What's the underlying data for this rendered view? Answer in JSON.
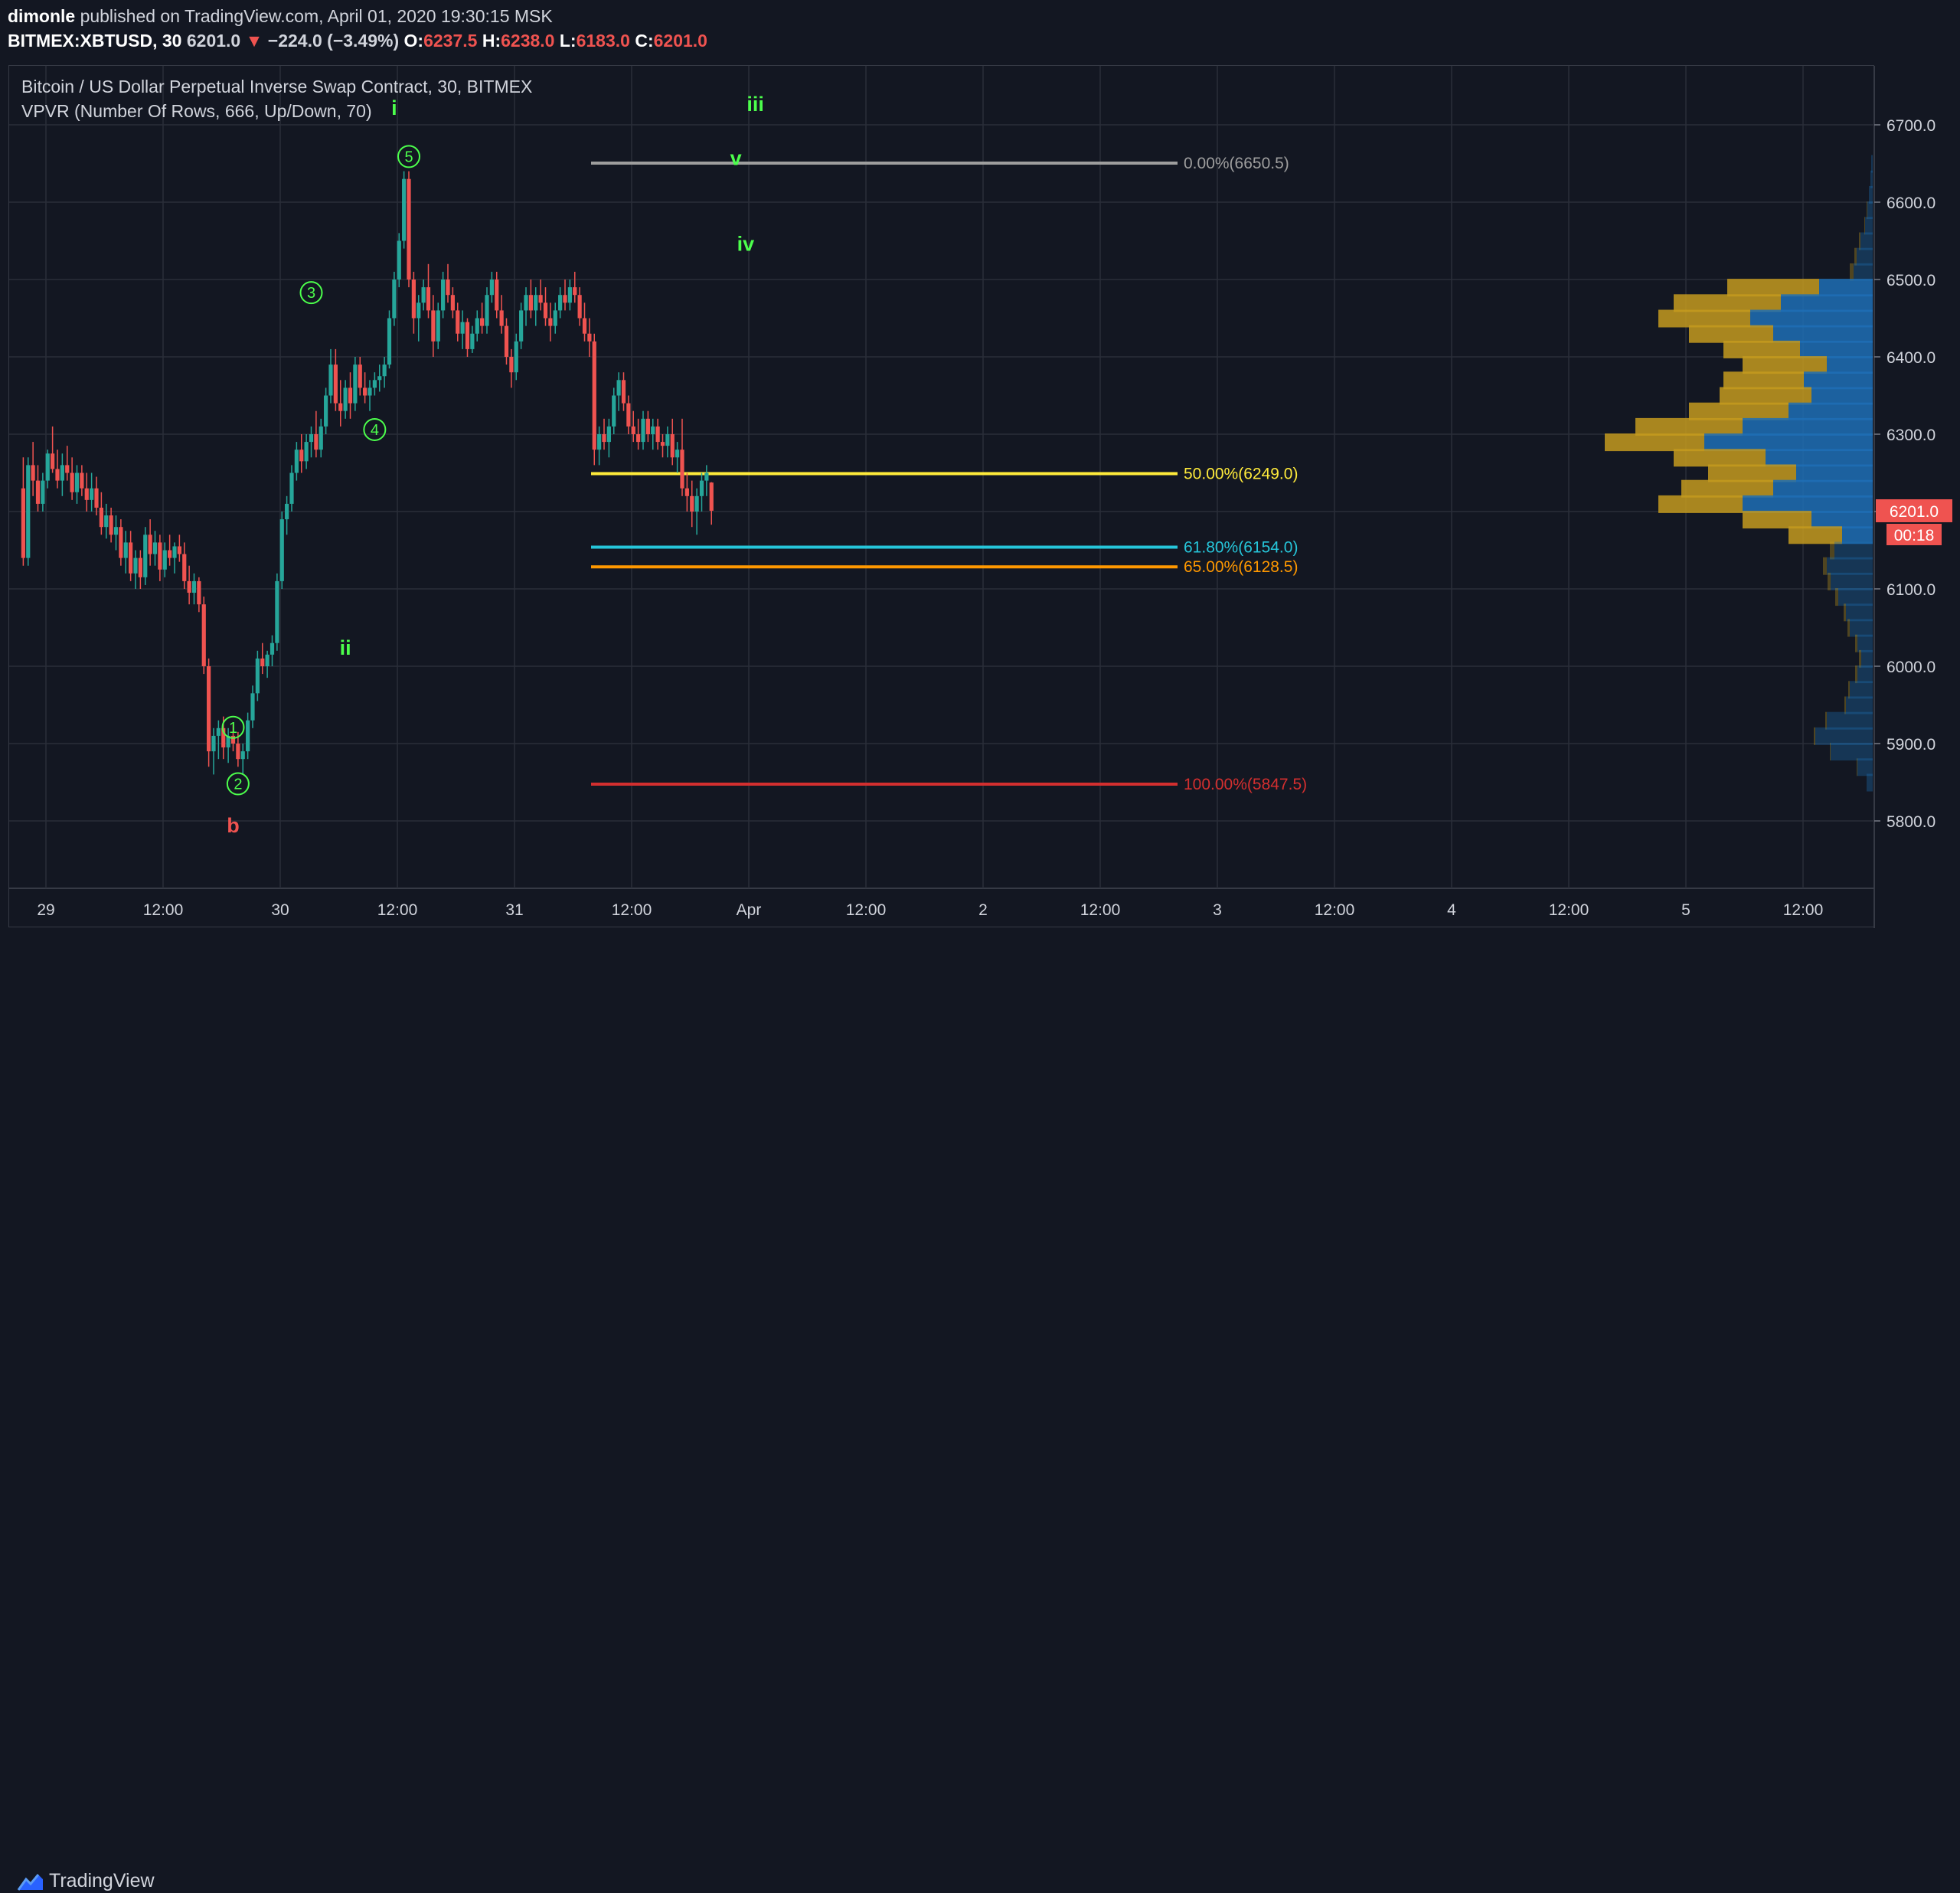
{
  "header": {
    "publisher": "dimonle",
    "published_text": "published on TradingView.com, April 01, 2020 19:30:15 MSK",
    "symbol": "BITMEX:XBTUSD, 30",
    "last": "6201.0",
    "arrow": "▼",
    "change": "−224.0 (−3.49%)",
    "o_label": "O:",
    "o_value": "6237.5",
    "h_label": "H:",
    "h_value": "6238.0",
    "l_label": "L:",
    "l_value": "6183.0",
    "c_label": "C:",
    "c_value": "6201.0"
  },
  "legend": {
    "line1": "Bitcoin / US Dollar Perpetual Inverse Swap Contract, 30, BITMEX",
    "line2": "VPVR (Number Of Rows, 666, Up/Down, 70)"
  },
  "footer": {
    "logo_text": "TradingView"
  },
  "colors": {
    "background": "#131722",
    "grid": "#2a2e39",
    "up": "#26a69a",
    "down": "#ef5350",
    "text": "#d1d4dc",
    "wave_green": "#4cff4c",
    "vp_up": "#1e6fb5",
    "vp_down": "#c49a1e"
  },
  "chart_data": {
    "type": "candlestick",
    "title": "Bitcoin / US Dollar Perpetual Inverse Swap Contract, 30, BITMEX",
    "ylim": [
      5740,
      6760
    ],
    "y_ticks": [
      "6700.0",
      "6600.0",
      "6500.0",
      "6400.0",
      "6300.0",
      "6200.0",
      "6100.0",
      "6000.0",
      "5900.0",
      "5800.0"
    ],
    "x_ticks": [
      "29",
      "12:00",
      "30",
      "12:00",
      "31",
      "12:00",
      "Apr",
      "12:00",
      "2",
      "12:00",
      "3",
      "12:00",
      "4",
      "12:00",
      "5",
      "12:00"
    ],
    "grid": true,
    "price_label": "6201.0",
    "countdown_label": "00:18",
    "candles": [
      [
        6230,
        6270,
        6130,
        6140
      ],
      [
        6140,
        6270,
        6130,
        6260
      ],
      [
        6260,
        6290,
        6220,
        6240
      ],
      [
        6240,
        6260,
        6200,
        6210
      ],
      [
        6210,
        6250,
        6200,
        6240
      ],
      [
        6240,
        6280,
        6230,
        6275
      ],
      [
        6275,
        6310,
        6250,
        6255
      ],
      [
        6255,
        6280,
        6230,
        6240
      ],
      [
        6240,
        6275,
        6220,
        6260
      ],
      [
        6260,
        6285,
        6240,
        6250
      ],
      [
        6250,
        6270,
        6215,
        6225
      ],
      [
        6225,
        6260,
        6210,
        6250
      ],
      [
        6250,
        6260,
        6220,
        6230
      ],
      [
        6230,
        6250,
        6200,
        6215
      ],
      [
        6215,
        6250,
        6200,
        6230
      ],
      [
        6230,
        6245,
        6195,
        6205
      ],
      [
        6205,
        6225,
        6170,
        6180
      ],
      [
        6180,
        6210,
        6165,
        6195
      ],
      [
        6195,
        6205,
        6160,
        6170
      ],
      [
        6170,
        6195,
        6150,
        6180
      ],
      [
        6180,
        6190,
        6130,
        6140
      ],
      [
        6140,
        6175,
        6120,
        6160
      ],
      [
        6160,
        6175,
        6110,
        6120
      ],
      [
        6120,
        6150,
        6100,
        6140
      ],
      [
        6140,
        6150,
        6100,
        6115
      ],
      [
        6115,
        6180,
        6105,
        6170
      ],
      [
        6170,
        6190,
        6130,
        6145
      ],
      [
        6145,
        6175,
        6130,
        6160
      ],
      [
        6160,
        6170,
        6110,
        6125
      ],
      [
        6125,
        6160,
        6115,
        6150
      ],
      [
        6150,
        6170,
        6130,
        6140
      ],
      [
        6140,
        6160,
        6120,
        6155
      ],
      [
        6155,
        6170,
        6135,
        6145
      ],
      [
        6145,
        6160,
        6100,
        6110
      ],
      [
        6110,
        6130,
        6080,
        6095
      ],
      [
        6095,
        6120,
        6080,
        6110
      ],
      [
        6110,
        6115,
        6070,
        6080
      ],
      [
        6080,
        6090,
        5990,
        6000
      ],
      [
        6000,
        6010,
        5870,
        5890
      ],
      [
        5890,
        5920,
        5860,
        5910
      ],
      [
        5910,
        5930,
        5880,
        5920
      ],
      [
        5920,
        5935,
        5880,
        5895
      ],
      [
        5895,
        5920,
        5875,
        5910
      ],
      [
        5910,
        5925,
        5890,
        5900
      ],
      [
        5900,
        5915,
        5870,
        5880
      ],
      [
        5880,
        5900,
        5860,
        5890
      ],
      [
        5890,
        5940,
        5880,
        5930
      ],
      [
        5930,
        5975,
        5920,
        5965
      ],
      [
        5965,
        6020,
        5955,
        6010
      ],
      [
        6010,
        6030,
        5990,
        6000
      ],
      [
        6000,
        6020,
        5985,
        6015
      ],
      [
        6015,
        6040,
        6000,
        6030
      ],
      [
        6030,
        6120,
        6020,
        6110
      ],
      [
        6110,
        6200,
        6100,
        6190
      ],
      [
        6190,
        6220,
        6170,
        6210
      ],
      [
        6210,
        6260,
        6200,
        6250
      ],
      [
        6250,
        6290,
        6240,
        6280
      ],
      [
        6280,
        6300,
        6250,
        6265
      ],
      [
        6265,
        6300,
        6255,
        6290
      ],
      [
        6290,
        6310,
        6270,
        6300
      ],
      [
        6300,
        6330,
        6270,
        6280
      ],
      [
        6280,
        6320,
        6270,
        6310
      ],
      [
        6310,
        6360,
        6300,
        6350
      ],
      [
        6350,
        6410,
        6340,
        6390
      ],
      [
        6390,
        6410,
        6330,
        6340
      ],
      [
        6340,
        6370,
        6310,
        6330
      ],
      [
        6330,
        6370,
        6320,
        6360
      ],
      [
        6360,
        6380,
        6320,
        6340
      ],
      [
        6340,
        6400,
        6330,
        6390
      ],
      [
        6390,
        6400,
        6350,
        6360
      ],
      [
        6360,
        6380,
        6340,
        6350
      ],
      [
        6350,
        6370,
        6330,
        6360
      ],
      [
        6360,
        6380,
        6350,
        6370
      ],
      [
        6370,
        6390,
        6355,
        6375
      ],
      [
        6375,
        6400,
        6360,
        6390
      ],
      [
        6390,
        6460,
        6385,
        6450
      ],
      [
        6450,
        6510,
        6440,
        6500
      ],
      [
        6500,
        6560,
        6490,
        6550
      ],
      [
        6550,
        6640,
        6540,
        6630
      ],
      [
        6630,
        6640,
        6490,
        6500
      ],
      [
        6500,
        6510,
        6430,
        6450
      ],
      [
        6450,
        6480,
        6420,
        6470
      ],
      [
        6470,
        6500,
        6460,
        6490
      ],
      [
        6490,
        6520,
        6450,
        6460
      ],
      [
        6460,
        6480,
        6400,
        6420
      ],
      [
        6420,
        6470,
        6410,
        6460
      ],
      [
        6460,
        6510,
        6450,
        6500
      ],
      [
        6500,
        6520,
        6470,
        6480
      ],
      [
        6480,
        6490,
        6450,
        6460
      ],
      [
        6460,
        6470,
        6420,
        6430
      ],
      [
        6430,
        6460,
        6410,
        6445
      ],
      [
        6445,
        6450,
        6400,
        6410
      ],
      [
        6410,
        6440,
        6405,
        6430
      ],
      [
        6430,
        6460,
        6420,
        6450
      ],
      [
        6450,
        6470,
        6430,
        6440
      ],
      [
        6440,
        6490,
        6430,
        6480
      ],
      [
        6480,
        6510,
        6470,
        6500
      ],
      [
        6500,
        6510,
        6450,
        6460
      ],
      [
        6460,
        6480,
        6430,
        6440
      ],
      [
        6440,
        6450,
        6390,
        6400
      ],
      [
        6400,
        6410,
        6360,
        6380
      ],
      [
        6380,
        6430,
        6370,
        6420
      ],
      [
        6420,
        6470,
        6410,
        6460
      ],
      [
        6460,
        6490,
        6440,
        6480
      ],
      [
        6480,
        6500,
        6450,
        6460
      ],
      [
        6460,
        6490,
        6440,
        6480
      ],
      [
        6480,
        6500,
        6460,
        6470
      ],
      [
        6470,
        6490,
        6440,
        6450
      ],
      [
        6450,
        6470,
        6420,
        6440
      ],
      [
        6440,
        6470,
        6430,
        6460
      ],
      [
        6460,
        6490,
        6450,
        6480
      ],
      [
        6480,
        6500,
        6460,
        6470
      ],
      [
        6470,
        6500,
        6460,
        6490
      ],
      [
        6490,
        6510,
        6470,
        6480
      ],
      [
        6480,
        6490,
        6440,
        6450
      ],
      [
        6450,
        6470,
        6420,
        6430
      ],
      [
        6430,
        6450,
        6400,
        6420
      ],
      [
        6420,
        6430,
        6260,
        6280
      ],
      [
        6280,
        6310,
        6260,
        6300
      ],
      [
        6300,
        6320,
        6280,
        6290
      ],
      [
        6290,
        6320,
        6270,
        6310
      ],
      [
        6310,
        6360,
        6300,
        6350
      ],
      [
        6350,
        6380,
        6330,
        6370
      ],
      [
        6370,
        6380,
        6330,
        6340
      ],
      [
        6340,
        6350,
        6300,
        6310
      ],
      [
        6310,
        6330,
        6290,
        6300
      ],
      [
        6300,
        6320,
        6280,
        6290
      ],
      [
        6290,
        6330,
        6280,
        6320
      ],
      [
        6320,
        6330,
        6290,
        6300
      ],
      [
        6300,
        6320,
        6280,
        6310
      ],
      [
        6310,
        6320,
        6280,
        6290
      ],
      [
        6290,
        6300,
        6270,
        6285
      ],
      [
        6285,
        6310,
        6270,
        6300
      ],
      [
        6300,
        6320,
        6260,
        6270
      ],
      [
        6270,
        6290,
        6250,
        6280
      ],
      [
        6280,
        6320,
        6220,
        6230
      ],
      [
        6230,
        6250,
        6200,
        6220
      ],
      [
        6220,
        6240,
        6180,
        6200
      ],
      [
        6200,
        6230,
        6170,
        6220
      ],
      [
        6220,
        6250,
        6200,
        6240
      ],
      [
        6240,
        6260,
        6220,
        6250
      ],
      [
        6237.5,
        6238,
        6183,
        6201
      ]
    ],
    "x_start": 1,
    "fib_levels": [
      {
        "label": "0.00%(6650.5)",
        "price": 6650.5,
        "color": "#9e9e9e"
      },
      {
        "label": "50.00%(6249.0)",
        "price": 6249.0,
        "color": "#ffeb3b"
      },
      {
        "label": "61.80%(6154.0)",
        "price": 6154.0,
        "color": "#26c6da"
      },
      {
        "label": "65.00%(6128.5)",
        "price": 6128.5,
        "color": "#ff9800"
      },
      {
        "label": "100.00%(5847.5)",
        "price": 5847.5,
        "color": "#d32f2f"
      }
    ],
    "wave_circles": [
      {
        "label": "1",
        "bar": 44,
        "price": 5921
      },
      {
        "label": "2",
        "bar": 45,
        "price": 5848
      },
      {
        "label": "3",
        "bar": 60,
        "price": 6483
      },
      {
        "label": "4",
        "bar": 73,
        "price": 6306
      },
      {
        "label": "5",
        "bar": 80,
        "price": 6659
      }
    ],
    "wave_labels": [
      {
        "label": "b",
        "bar": 44,
        "price": 5785,
        "color": "#ef5350"
      },
      {
        "label": "ii",
        "bar": 67,
        "price": 6015,
        "color": "#4cff4c"
      },
      {
        "label": "iii",
        "bar": 151,
        "price": 6718,
        "color": "#4cff4c"
      },
      {
        "label": "iv",
        "bar": 149,
        "price": 6537,
        "color": "#4cff4c"
      },
      {
        "label": "v",
        "bar": 147,
        "price": 6648,
        "color": "#4cff4c"
      },
      {
        "label": "i",
        "bar": 77,
        "price": 6713,
        "color": "#4cff4c"
      }
    ],
    "volume_profile": [
      [
        6650,
        0,
        2
      ],
      [
        6630,
        0,
        3
      ],
      [
        6610,
        0,
        5
      ],
      [
        6590,
        1,
        7
      ],
      [
        6570,
        1,
        10
      ],
      [
        6550,
        2,
        16
      ],
      [
        6530,
        3,
        21
      ],
      [
        6510,
        5,
        25
      ],
      [
        6490,
        120,
        70
      ],
      [
        6470,
        140,
        120
      ],
      [
        6450,
        120,
        160
      ],
      [
        6430,
        110,
        130
      ],
      [
        6410,
        100,
        95
      ],
      [
        6390,
        110,
        60
      ],
      [
        6370,
        105,
        90
      ],
      [
        6350,
        120,
        80
      ],
      [
        6330,
        130,
        110
      ],
      [
        6310,
        140,
        170
      ],
      [
        6290,
        130,
        220
      ],
      [
        6270,
        120,
        140
      ],
      [
        6250,
        115,
        100
      ],
      [
        6230,
        120,
        130
      ],
      [
        6210,
        110,
        170
      ],
      [
        6190,
        90,
        80
      ],
      [
        6170,
        70,
        40
      ],
      [
        6150,
        6,
        50
      ],
      [
        6130,
        5,
        60
      ],
      [
        6110,
        4,
        55
      ],
      [
        6090,
        4,
        45
      ],
      [
        6070,
        3,
        35
      ],
      [
        6050,
        3,
        30
      ],
      [
        6030,
        3,
        20
      ],
      [
        6010,
        3,
        15
      ],
      [
        5990,
        3,
        20
      ],
      [
        5970,
        2,
        30
      ],
      [
        5950,
        2,
        35
      ],
      [
        5930,
        2,
        60
      ],
      [
        5910,
        2,
        75
      ],
      [
        5890,
        1,
        55
      ],
      [
        5870,
        1,
        20
      ],
      [
        5850,
        0,
        8
      ]
    ]
  }
}
